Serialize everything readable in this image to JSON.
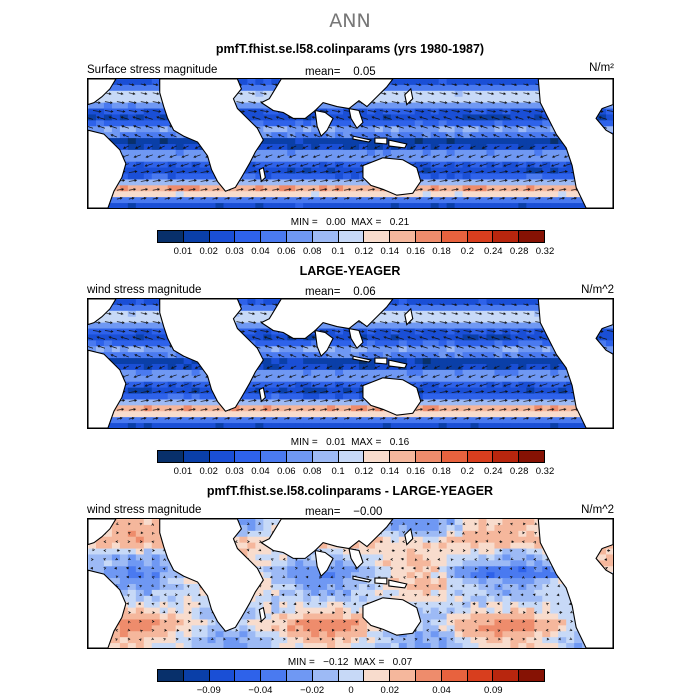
{
  "figure": {
    "title": "ANN"
  },
  "colors": {
    "abs_levels": [
      "#08306b",
      "#0a3fa8",
      "#1a4fd6",
      "#2e62ea",
      "#4a7af0",
      "#6f98f3",
      "#9dbaf5",
      "#c7d9f7",
      "#f8dccd",
      "#f5b79c",
      "#ee8c6c",
      "#e8623e",
      "#d83e1e",
      "#b8260e",
      "#861204"
    ],
    "diff_levels": [
      "#08306b",
      "#0a3fa8",
      "#1a4fd6",
      "#2e62ea",
      "#4a7af0",
      "#6f98f3",
      "#9dbaf5",
      "#c7d9f7",
      "#f8dccd",
      "#f5b79c",
      "#ee8c6c",
      "#e8623e",
      "#d83e1e",
      "#b8260e",
      "#861204"
    ],
    "land": "#ffffff",
    "vector": "#111111"
  },
  "panels": [
    {
      "title": "pmfT.fhist.se.l58.colinparams (yrs 1980-1987)",
      "left_label": "Surface stress magnitude",
      "mean_label": "mean=",
      "mean_value": "0.05",
      "units": "N/m²",
      "min_label": "MIN =",
      "min_value": "0.00",
      "max_label": "MAX =",
      "max_value": "0.21",
      "kind": "abs"
    },
    {
      "title": "LARGE-YEAGER",
      "left_label": "wind stress magnitude",
      "mean_label": "mean=",
      "mean_value": "0.06",
      "units": "N/m^2",
      "min_label": "MIN =",
      "min_value": "0.01",
      "max_label": "MAX =",
      "max_value": "0.16",
      "kind": "abs"
    },
    {
      "title": "pmfT.fhist.se.l58.colinparams - LARGE-YEAGER",
      "left_label": "wind stress magnitude",
      "mean_label": "mean=",
      "mean_value": "−0.00",
      "units": "N/m^2",
      "min_label": "MIN =",
      "min_value": "−0.12",
      "max_label": "MAX =",
      "max_value": "0.07",
      "kind": "diff"
    }
  ],
  "chart_data": [
    {
      "type": "heatmap",
      "title": "pmfT.fhist.se.l58.colinparams (yrs 1980-1987)",
      "variable": "Surface stress magnitude",
      "units": "N/m²",
      "mean": 0.05,
      "min": 0.0,
      "max": 0.21,
      "colorbar_ticks": [
        "0.01",
        "0.02",
        "0.03",
        "0.04",
        "0.06",
        "0.08",
        "0.1",
        "0.12",
        "0.14",
        "0.16",
        "0.18",
        "0.2",
        "0.24",
        "0.28",
        "0.32"
      ]
    },
    {
      "type": "heatmap",
      "title": "LARGE-YEAGER",
      "variable": "wind stress magnitude",
      "units": "N/m^2",
      "mean": 0.06,
      "min": 0.01,
      "max": 0.16,
      "colorbar_ticks": [
        "0.01",
        "0.02",
        "0.03",
        "0.04",
        "0.06",
        "0.08",
        "0.1",
        "0.12",
        "0.14",
        "0.16",
        "0.18",
        "0.2",
        "0.24",
        "0.28",
        "0.32"
      ]
    },
    {
      "type": "heatmap",
      "title": "pmfT.fhist.se.l58.colinparams - LARGE-YEAGER",
      "variable": "wind stress magnitude",
      "units": "N/m^2",
      "mean": -0.0,
      "min": -0.12,
      "max": 0.07,
      "colorbar_ticks": [
        "−0.09",
        "−0.04",
        "−0.02",
        "0",
        "0.02",
        "0.04",
        "0.09"
      ]
    }
  ]
}
